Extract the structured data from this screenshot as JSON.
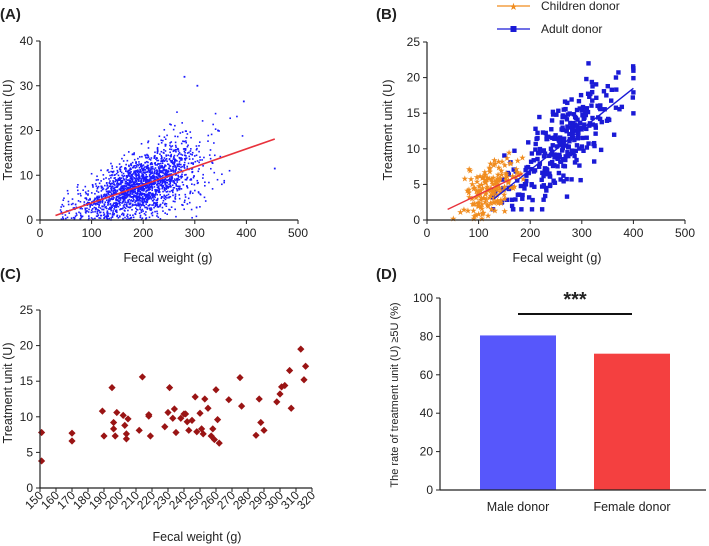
{
  "figure": {
    "panels": [
      "(A)",
      "(B)",
      "(C)",
      "(D)"
    ]
  },
  "chart_data": [
    {
      "id": "A",
      "type": "scatter",
      "panel_label": "(A)",
      "xlabel": "Fecal weight (g)",
      "ylabel": "Treatment unit (U)",
      "xlim": [
        0,
        500
      ],
      "ylim": [
        0,
        40
      ],
      "xticks": [
        0,
        100,
        200,
        300,
        400,
        500
      ],
      "yticks": [
        0,
        10,
        20,
        30,
        40
      ],
      "point_color": "#1a1aff",
      "fit_color": "#e8323c",
      "series": [
        {
          "name": "samples",
          "n_points": 2000,
          "x_range": [
            30,
            460
          ],
          "y_range": [
            0,
            32
          ],
          "outliers": [
            [
              280,
              32
            ],
            [
              305,
              30
            ],
            [
              395,
              26.5
            ],
            [
              345,
              20
            ],
            [
              455,
              11.5
            ]
          ]
        }
      ],
      "fit_line": {
        "x": [
          30,
          455
        ],
        "y": [
          1,
          18.1
        ]
      }
    },
    {
      "id": "B",
      "type": "scatter",
      "panel_label": "(B)",
      "xlabel": "Fecal weight (g)",
      "ylabel": "Treatment unit (U)",
      "xlim": [
        0,
        500
      ],
      "ylim": [
        0,
        25
      ],
      "xticks": [
        0,
        100,
        200,
        300,
        400,
        500
      ],
      "yticks": [
        0,
        5,
        10,
        15,
        20,
        25
      ],
      "legend": [
        {
          "name": "Children donor",
          "color": "#f08c1e",
          "marker": "star"
        },
        {
          "name": "Adult donor",
          "color": "#1a1ad6",
          "marker": "square"
        }
      ],
      "series": [
        {
          "name": "Children donor",
          "n_points": 160,
          "x_range": [
            40,
            190
          ],
          "y_range": [
            0,
            9.5
          ]
        },
        {
          "name": "Adult donor",
          "n_points": 300,
          "x_range": [
            125,
            400
          ],
          "y_range": [
            1.5,
            22
          ]
        }
      ],
      "fit_lines": [
        {
          "series": "Children donor",
          "x": [
            40,
            185
          ],
          "y": [
            1.5,
            6.5
          ]
        },
        {
          "series": "Adult donor",
          "x": [
            130,
            400
          ],
          "y": [
            3,
            18.5
          ]
        }
      ]
    },
    {
      "id": "C",
      "type": "scatter",
      "panel_label": "(C)",
      "xlabel": "Fecal weight (g)",
      "ylabel": "Treatment unit (U)",
      "xlim": [
        150,
        320
      ],
      "ylim": [
        0,
        25
      ],
      "xticks": [
        150,
        160,
        170,
        180,
        190,
        200,
        210,
        220,
        230,
        240,
        250,
        260,
        270,
        280,
        290,
        300,
        310,
        320
      ],
      "yticks": [
        0,
        5,
        10,
        15,
        20,
        25
      ],
      "point_color": "#9a1414",
      "series": [
        {
          "name": "samples",
          "x": [
            151,
            151,
            170,
            170,
            189,
            190,
            195,
            196,
            196,
            197,
            198,
            202,
            203,
            204,
            204,
            205,
            212,
            214,
            218,
            218,
            219,
            228,
            230,
            231,
            233,
            234,
            235,
            238,
            240,
            241,
            242,
            243,
            245,
            247,
            248,
            250,
            251,
            252,
            253,
            255,
            257,
            258,
            259,
            260,
            261,
            262,
            268,
            275,
            276,
            285,
            287,
            288,
            290,
            298,
            300,
            301,
            303,
            306,
            307,
            313,
            315,
            316
          ],
          "y": [
            7.8,
            3.8,
            6.6,
            7.7,
            10.8,
            7.3,
            14.1,
            9.2,
            8.3,
            7.3,
            10.6,
            10.2,
            8.8,
            7.6,
            6.9,
            9.7,
            8.1,
            15.6,
            10.1,
            10.3,
            7.3,
            8.6,
            10.6,
            14.1,
            9.8,
            11.1,
            7.8,
            9.8,
            10.4,
            10.4,
            9.3,
            8.1,
            9.5,
            12.8,
            7.9,
            10.5,
            8.3,
            7.6,
            12.5,
            11.2,
            7.3,
            8.3,
            6.8,
            13.8,
            9.6,
            6.3,
            12.4,
            15.5,
            11.5,
            7.4,
            12.5,
            9.2,
            8.1,
            12.1,
            13.2,
            14.2,
            14.4,
            16.5,
            11.2,
            19.5,
            15.2,
            17.1
          ]
        }
      ]
    },
    {
      "id": "D",
      "type": "bar",
      "panel_label": "(D)",
      "xlabel": "",
      "ylabel": "The rate of treatment unit (U) ≥5U (%)",
      "ylim": [
        0,
        100
      ],
      "yticks": [
        0,
        20,
        40,
        60,
        80,
        100
      ],
      "categories": [
        "Male donor",
        "Female donor"
      ],
      "values": [
        80.5,
        71
      ],
      "colors": [
        "#5757fb",
        "#f44040"
      ],
      "significance": "***"
    }
  ]
}
